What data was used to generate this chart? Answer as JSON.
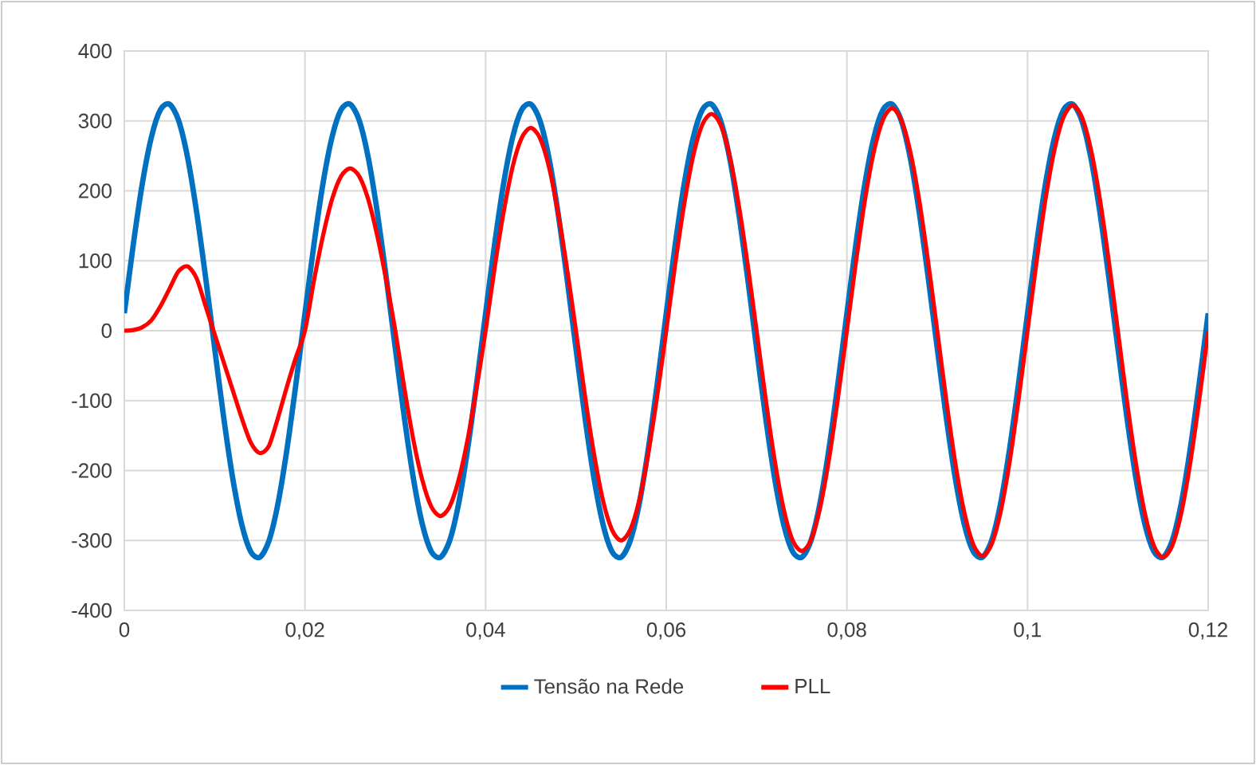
{
  "chart_data": {
    "type": "line",
    "x": [
      0,
      0.001,
      0.002,
      0.003,
      0.004,
      0.005,
      0.006,
      0.007,
      0.008,
      0.009,
      0.01,
      0.011,
      0.012,
      0.013,
      0.014,
      0.015,
      0.016,
      0.017,
      0.018,
      0.019,
      0.02,
      0.021,
      0.022,
      0.023,
      0.024,
      0.025,
      0.026,
      0.027,
      0.028,
      0.029,
      0.03,
      0.031,
      0.032,
      0.033,
      0.034,
      0.035,
      0.036,
      0.037,
      0.038,
      0.039,
      0.04,
      0.041,
      0.042,
      0.043,
      0.044,
      0.045,
      0.046,
      0.047,
      0.048,
      0.049,
      0.05,
      0.051,
      0.052,
      0.053,
      0.054,
      0.055,
      0.056,
      0.057,
      0.058,
      0.059,
      0.06,
      0.061,
      0.062,
      0.063,
      0.064,
      0.065,
      0.066,
      0.067,
      0.068,
      0.069,
      0.07,
      0.071,
      0.072,
      0.073,
      0.074,
      0.075,
      0.076,
      0.077,
      0.078,
      0.079,
      0.08,
      0.081,
      0.082,
      0.083,
      0.084,
      0.085,
      0.086,
      0.087,
      0.088,
      0.089,
      0.09,
      0.091,
      0.092,
      0.093,
      0.094,
      0.095,
      0.096,
      0.097,
      0.098,
      0.099,
      0.1,
      0.101,
      0.102,
      0.103,
      0.104,
      0.105,
      0.106,
      0.107,
      0.108,
      0.109,
      0.11,
      0.111,
      0.112,
      0.113,
      0.114,
      0.115,
      0.116,
      0.117,
      0.118,
      0.119,
      0.12
    ],
    "series": [
      {
        "name": "Tensão na Rede",
        "color": "#0070c0",
        "values": [
          25,
          124,
          211,
          277,
          316,
          324,
          301,
          248,
          170,
          76,
          -25,
          -124,
          -211,
          -277,
          -316,
          -324,
          -301,
          -248,
          -170,
          -76,
          25,
          124,
          211,
          277,
          316,
          324,
          301,
          248,
          170,
          76,
          -25,
          -124,
          -211,
          -277,
          -316,
          -324,
          -301,
          -248,
          -170,
          -76,
          25,
          124,
          211,
          277,
          316,
          324,
          301,
          248,
          170,
          76,
          -25,
          -124,
          -211,
          -277,
          -316,
          -324,
          -301,
          -248,
          -170,
          -76,
          25,
          124,
          211,
          277,
          316,
          324,
          301,
          248,
          170,
          76,
          -25,
          -124,
          -211,
          -277,
          -316,
          -324,
          -301,
          -248,
          -170,
          -76,
          25,
          124,
          211,
          277,
          316,
          324,
          301,
          248,
          170,
          76,
          -25,
          -124,
          -211,
          -277,
          -316,
          -324,
          -301,
          -248,
          -170,
          -76,
          25,
          124,
          211,
          277,
          316,
          324,
          301,
          248,
          170,
          76,
          -25,
          -124,
          -211,
          -277,
          -316,
          -324,
          -301,
          -248,
          -170,
          -76,
          25
        ]
      },
      {
        "name": "PLL",
        "color": "#ff0000",
        "values": [
          0,
          1,
          5,
          15,
          35,
          60,
          85,
          92,
          75,
          35,
          -5,
          -45,
          -85,
          -125,
          -160,
          -175,
          -165,
          -125,
          -80,
          -38,
          0,
          72,
          136,
          188,
          221,
          232,
          221,
          188,
          136,
          72,
          0,
          -82,
          -156,
          -214,
          -252,
          -265,
          -252,
          -214,
          -156,
          -82,
          0,
          90,
          170,
          235,
          276,
          290,
          276,
          235,
          170,
          90,
          0,
          -93,
          -176,
          -243,
          -285,
          -300,
          -285,
          -243,
          -176,
          -93,
          0,
          96,
          182,
          251,
          295,
          310,
          295,
          251,
          182,
          96,
          0,
          -97,
          -185,
          -255,
          -300,
          -315,
          -300,
          -255,
          -185,
          -97,
          0,
          98,
          187,
          257,
          302,
          318,
          302,
          257,
          187,
          98,
          0,
          -99,
          -189,
          -260,
          -306,
          -322,
          -306,
          -260,
          -189,
          -99,
          0,
          99,
          189,
          260,
          306,
          322,
          306,
          260,
          189,
          99,
          0,
          -100,
          -190,
          -262,
          -308,
          -324,
          -308,
          -262,
          -190,
          -100,
          0
        ]
      }
    ],
    "xlim": [
      0,
      0.12
    ],
    "xticks": [
      0,
      {
        "value": 0.02,
        "label": "0,02"
      },
      {
        "value": 0.04,
        "label": "0,04"
      },
      {
        "value": 0.06,
        "label": "0,06"
      },
      {
        "value": 0.08,
        "label": "0,08"
      },
      {
        "value": 0.1,
        "label": "0,1"
      },
      {
        "value": 0.12,
        "label": "0,12"
      }
    ],
    "ylim": [
      -400,
      400
    ],
    "yticks": [
      -400,
      -300,
      -200,
      -100,
      0,
      100,
      200,
      300,
      400
    ],
    "grid": true,
    "legend": "bottom",
    "marker": "none",
    "line_style": "solid"
  }
}
